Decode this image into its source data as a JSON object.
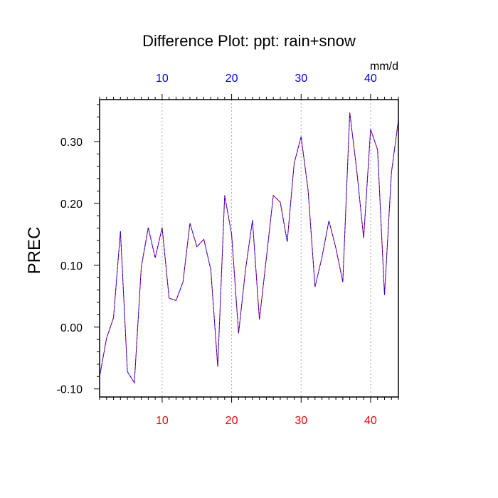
{
  "chart_data": {
    "type": "line",
    "title": "Difference Plot: ppt: rain+snow",
    "ylabel": "PREC",
    "units_label": "mm/d",
    "xlim": [
      1,
      44
    ],
    "ylim": [
      -0.113,
      0.368
    ],
    "x_ticks": [
      10,
      20,
      30,
      40
    ],
    "x_tick_labels": [
      "10",
      "20",
      "30",
      "40"
    ],
    "y_ticks": [
      -0.1,
      0.0,
      0.1,
      0.2,
      0.3
    ],
    "y_tick_labels": [
      "-0.10",
      "0.00",
      "0.10",
      "0.20",
      "0.30"
    ],
    "top_tick_color": "#0000ff",
    "bottom_tick_color": "#ff0000",
    "grid": "vertical dashed at x ticks",
    "series": [
      {
        "color_a": "#ff0000",
        "color_b": "#0000ff",
        "style": "dashed overlay",
        "x": [
          1,
          2,
          3,
          4,
          5,
          6,
          7,
          8,
          9,
          10,
          11,
          12,
          13,
          14,
          15,
          16,
          17,
          18,
          19,
          20,
          21,
          22,
          23,
          24,
          25,
          26,
          27,
          28,
          29,
          30,
          31,
          32,
          33,
          34,
          35,
          36,
          37,
          38,
          39,
          40,
          41,
          42,
          43,
          44
        ],
        "y": [
          -0.08,
          -0.018,
          0.015,
          0.155,
          -0.072,
          -0.09,
          0.097,
          0.161,
          0.112,
          0.161,
          0.047,
          0.043,
          0.073,
          0.168,
          0.13,
          0.142,
          0.093,
          -0.064,
          0.213,
          0.15,
          -0.01,
          0.093,
          0.173,
          0.012,
          0.112,
          0.213,
          0.202,
          0.138,
          0.265,
          0.308,
          0.222,
          0.065,
          0.113,
          0.172,
          0.128,
          0.073,
          0.347,
          0.254,
          0.144,
          0.32,
          0.287,
          0.052,
          0.25,
          0.335
        ]
      }
    ]
  }
}
